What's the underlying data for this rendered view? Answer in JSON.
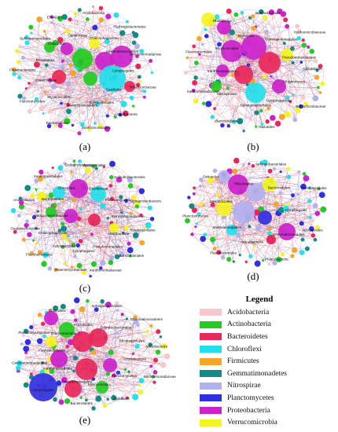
{
  "panels": [
    {
      "id": "a",
      "label": "(a)",
      "labels": [
        "Acidobacteria",
        "Chitinophagaceae",
        "Sphingobacteriales",
        "Gemmatimonadetes",
        "Nitrosomonadaceae",
        "Cytophagales",
        "Rhodocyclaceae",
        "Gaiellales",
        "Actinobacteria",
        "Burkholderiales",
        "Xanthomonadales",
        "Pseudomonadales",
        "Bacteroidetes",
        "Myxococcales",
        "Planctomycetes",
        "Anaerolineae",
        "Flavobacteriales",
        "Rhizobiales",
        "Sphingomonadales",
        "Chloroflexi",
        "Ellin6067",
        "Opitutaceae"
      ]
    },
    {
      "id": "b",
      "label": "(b)",
      "labels": [
        "Burkholderiales",
        "Gemmatimonadales",
        "Hyphomicrobiaceae",
        "Pseudonocardiaceae",
        "Opitutaceae",
        "Streptomyces",
        "Bradyrhizobiaceae",
        "Cytophagaceae",
        "Opitutales",
        "Sphingobacteriales",
        "Bacteroidales",
        "Nitrospirales",
        "Xanthomonadaceae",
        "Xanthomonadales",
        "Flavobacteriales",
        "Myxococcales",
        "Rhizobiales",
        "Nitrospira"
      ]
    },
    {
      "id": "c",
      "label": "(c)",
      "labels": [
        "Myxococcales",
        "Gaiellaceae",
        "Solirubrobacterales",
        "Planctomycetes",
        "Alphaproteobacteria",
        "Nitrosomonadaceae",
        "Rhodospirillales",
        "Acidobacteria",
        "Burkholderiales",
        "Pseudomonadales",
        "Xanthomonadaceae",
        "Cytophagales",
        "Planctomycetaceae",
        "Actinobacteria",
        "Flavobacteriales",
        "Chitinophagaceae",
        "Oxalobacteraceae",
        "Verrucomicrobiaceae",
        "Anaerolineae",
        "Bacteroidetes",
        "Xanthomonadales",
        "Chloroflexi",
        "Deltaproteobacteria"
      ]
    },
    {
      "id": "d",
      "label": "(d)",
      "labels": [
        "Sphingobacteriales",
        "Bacteroidetes",
        "Rhodospirillales",
        "Cytophagales",
        "Nitrospirales",
        "Gemmatimonadales",
        "Proteobacteria",
        "Actinobacteria",
        "Flavobacteriales",
        "Xanthomonadales",
        "Planctomycetes",
        "Myxococcales",
        "Opitutales",
        "Rhizobiales"
      ]
    },
    {
      "id": "e",
      "label": "(e)",
      "labels": [
        "Sphingobacteriales",
        "Solirubrobacterales",
        "Gemmatimonadetes",
        "Rhodospirillales",
        "Acidobacteria",
        "Actinobacteria",
        "Nitrosomonadaceae",
        "Planctomycetes",
        "Opitutales",
        "Myxococcales",
        "Bacteroidetes",
        "Pseudomonadales",
        "Cytophagales",
        "Xanthomonadales",
        "Gemmatimonadaceae",
        "Flavobacteriales",
        "Planctomycetaceae",
        "Thermomicrobia",
        "Chloroflexi",
        "Rhizobiales"
      ]
    }
  ],
  "legend": {
    "title": "Legend",
    "items": [
      {
        "label": "Acidobacteria",
        "color": "#f7c7cc"
      },
      {
        "label": "Actinobacteria",
        "color": "#22cc22"
      },
      {
        "label": "Bacteroidetes",
        "color": "#e8275a"
      },
      {
        "label": "Chloroflexi",
        "color": "#22e0ec"
      },
      {
        "label": "Firmicutes",
        "color": "#f4a52a"
      },
      {
        "label": "Gemmatimonadetes",
        "color": "#128a85"
      },
      {
        "label": "Nitrospirae",
        "color": "#b3b0f0"
      },
      {
        "label": "Planctomycetes",
        "color": "#3030e0"
      },
      {
        "label": "Proteobacteria",
        "color": "#cc22cc"
      },
      {
        "label": "Verrucomicrobia",
        "color": "#f4f422"
      }
    ]
  }
}
